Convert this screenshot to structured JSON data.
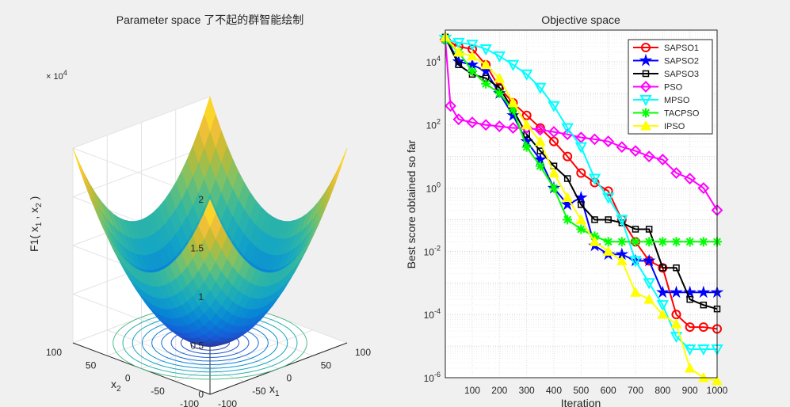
{
  "chart_data": [
    {
      "type": "surface",
      "title": "Parameter space 了不起的群智能绘制",
      "xlabel_base": "x",
      "xlabel_sub": "1",
      "ylabel_base": "x",
      "ylabel_sub": "2",
      "zlabel": "F1( x",
      "zlabel_parts": [
        "F1( x",
        "1",
        " , x",
        "2",
        " )"
      ],
      "zexp_prefix": "× 10",
      "zexp_power": "4",
      "xticks": [
        "-100",
        "-50",
        "0",
        "50",
        "100"
      ],
      "yticks": [
        "-100",
        "-50",
        "0",
        "50",
        "100"
      ],
      "zticks": [
        "0",
        "0.5",
        "1",
        "1.5",
        "2"
      ],
      "xlim": [
        -100,
        100
      ],
      "ylim": [
        -100,
        100
      ],
      "zlim": [
        0,
        20000
      ],
      "function": "x1^2 + x2^2"
    },
    {
      "type": "line",
      "title": "Objective space",
      "xlabel": "Iteration",
      "ylabel": "Best score obtained so far",
      "yscale": "log",
      "xlim": [
        1,
        1000
      ],
      "ylim": [
        1e-06,
        100000.0
      ],
      "xticks": [
        "100",
        "200",
        "300",
        "400",
        "500",
        "600",
        "700",
        "800",
        "900",
        "1000"
      ],
      "yticks": [
        {
          "base": "10",
          "exp": "4"
        },
        {
          "base": "10",
          "exp": "2"
        },
        {
          "base": "10",
          "exp": "0"
        },
        {
          "base": "10",
          "exp": "-2"
        },
        {
          "base": "10",
          "exp": "-4"
        },
        {
          "base": "10",
          "exp": "-6"
        }
      ],
      "legend_position": "top-right",
      "grid": true,
      "series": [
        {
          "name": "SAPSO1",
          "color": "#ff0000",
          "marker": "circle",
          "x": [
            1,
            50,
            100,
            150,
            200,
            250,
            300,
            350,
            400,
            450,
            500,
            550,
            600,
            650,
            700,
            750,
            800,
            850,
            900,
            950,
            1000
          ],
          "y": [
            50000,
            30000,
            25000,
            8000,
            1500,
            500,
            200,
            80,
            30,
            10,
            3,
            1.5,
            0.8,
            0.1,
            0.02,
            0.005,
            0.003,
            0.0001,
            4e-05,
            4e-05,
            3.5e-05
          ]
        },
        {
          "name": "SAPSO2",
          "color": "#0000ff",
          "marker": "star",
          "x": [
            1,
            50,
            100,
            150,
            200,
            250,
            300,
            350,
            400,
            450,
            500,
            550,
            600,
            650,
            700,
            750,
            800,
            850,
            900,
            950,
            1000
          ],
          "y": [
            60000,
            10000,
            8000,
            5000,
            1000,
            200,
            30,
            8,
            1,
            0.3,
            0.5,
            0.015,
            0.008,
            0.008,
            0.005,
            0.005,
            0.0005,
            0.0005,
            0.0005,
            0.0005,
            0.0005
          ]
        },
        {
          "name": "SAPSO3",
          "color": "#000000",
          "marker": "square",
          "x": [
            1,
            50,
            100,
            150,
            200,
            250,
            300,
            350,
            400,
            450,
            500,
            550,
            600,
            650,
            700,
            750,
            800,
            850,
            900,
            950,
            1000
          ],
          "y": [
            60000,
            8000,
            4000,
            3000,
            1500,
            300,
            50,
            15,
            5,
            2,
            0.3,
            0.1,
            0.1,
            0.08,
            0.05,
            0.05,
            0.003,
            0.003,
            0.0003,
            0.0002,
            0.00015
          ]
        },
        {
          "name": "PSO",
          "color": "#ff00ff",
          "marker": "diamond",
          "x": [
            1,
            20,
            50,
            100,
            150,
            200,
            250,
            300,
            350,
            400,
            450,
            500,
            550,
            600,
            650,
            700,
            750,
            800,
            850,
            900,
            950,
            1000
          ],
          "y": [
            50000,
            400,
            150,
            120,
            100,
            90,
            80,
            80,
            70,
            60,
            50,
            40,
            35,
            30,
            20,
            15,
            10,
            8,
            3,
            2,
            1,
            0.2
          ]
        },
        {
          "name": "MPSO",
          "color": "#00ffff",
          "marker": "triangle-down",
          "x": [
            1,
            50,
            100,
            150,
            200,
            250,
            300,
            350,
            400,
            450,
            500,
            550,
            600,
            650,
            700,
            750,
            800,
            850,
            900,
            950,
            1000
          ],
          "y": [
            50000,
            40000,
            35000,
            25000,
            15000,
            8000,
            4000,
            1500,
            400,
            80,
            20,
            2,
            0.5,
            0.1,
            0.005,
            0.001,
            0.0002,
            2e-05,
            8e-06,
            8e-06,
            8e-06
          ]
        },
        {
          "name": "TACPSO",
          "color": "#00ff00",
          "marker": "asterisk",
          "x": [
            1,
            50,
            100,
            150,
            200,
            250,
            300,
            350,
            400,
            450,
            500,
            550,
            600,
            650,
            700,
            750,
            800,
            850,
            900,
            950,
            1000
          ],
          "y": [
            50000,
            20000,
            5000,
            2000,
            1000,
            300,
            20,
            5,
            1,
            0.1,
            0.05,
            0.03,
            0.02,
            0.02,
            0.02,
            0.02,
            0.02,
            0.02,
            0.02,
            0.02,
            0.02
          ]
        },
        {
          "name": "IPSO",
          "color": "#ffff00",
          "marker": "triangle-up",
          "x": [
            1,
            50,
            100,
            150,
            200,
            250,
            300,
            350,
            400,
            450,
            500,
            550,
            600,
            650,
            700,
            750,
            800,
            850,
            900,
            950,
            1000
          ],
          "y": [
            60000,
            20000,
            15000,
            8000,
            3000,
            500,
            100,
            30,
            3,
            0.5,
            0.1,
            0.02,
            0.01,
            0.005,
            0.0005,
            0.0003,
            0.0001,
            5e-05,
            2e-06,
            1e-06,
            8e-07
          ]
        }
      ]
    }
  ]
}
